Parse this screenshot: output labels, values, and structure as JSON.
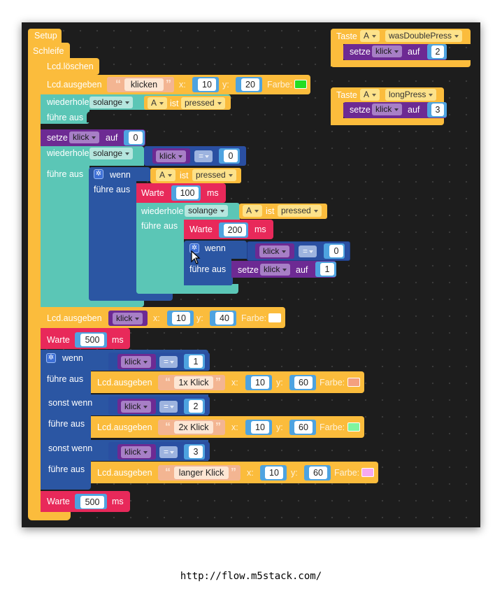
{
  "blocks": {
    "setup": "Setup",
    "loop": "Schleife",
    "lcd_clear": "Lcd.löschen",
    "lcd_show": "Lcd.ausgeben",
    "repeat": "wiederhole",
    "while": "solange",
    "do": "führe aus",
    "set": "setze",
    "to": "auf",
    "is": "ist",
    "pressed": "pressed",
    "button_a": "A",
    "if": "wenn",
    "else_if": "sonst wenn",
    "wait": "Warte",
    "ms": "ms",
    "x": "x:",
    "y": "y:",
    "color": "Farbe:",
    "var_click": "klick",
    "eq": "=",
    "key": "Taste"
  },
  "values": {
    "text_klicken": "klicken",
    "x10": "10",
    "y20": "20",
    "zero": "0",
    "wait100": "100",
    "wait200": "200",
    "one": "1",
    "y40": "40",
    "wait500": "500",
    "two": "2",
    "three": "3",
    "y60": "60",
    "text_1x": "1x Klick",
    "text_2x": "2x Klick",
    "text_long": "langer Klick",
    "double_press": "wasDoublePress",
    "long_press": "longPress"
  },
  "colors": {
    "green": "#22dd22",
    "white": "#ffffff",
    "salmon": "#f4a07f",
    "light_green": "#7ff59f",
    "pink": "#f6a9f0"
  },
  "footer": {
    "url": "http://flow.m5stack.com/"
  }
}
